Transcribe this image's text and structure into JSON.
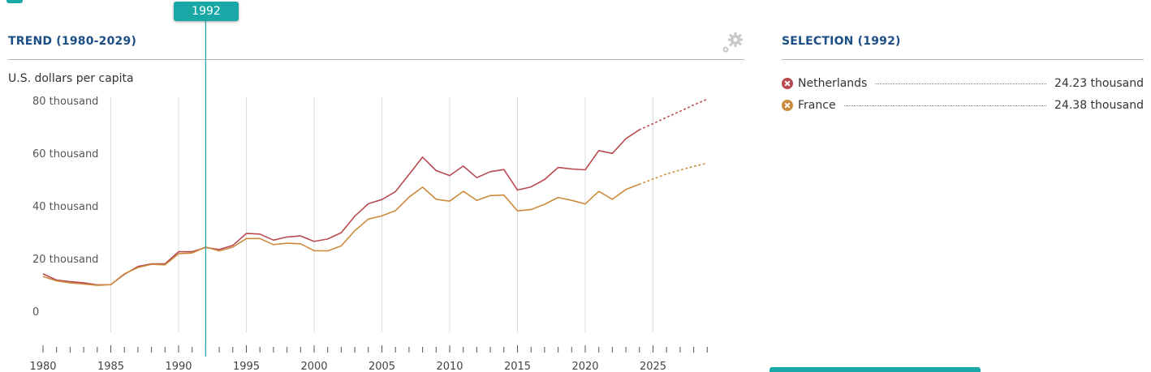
{
  "trend_panel": {
    "title": "TREND (1980-2029)",
    "unit_label": "U.S. dollars per capita",
    "settings_icon": "gear-icon",
    "selected_year_label": "1992"
  },
  "selection_panel": {
    "title": "SELECTION (1992)",
    "items": [
      {
        "name": "Netherlands",
        "value": "24.23 thousand",
        "color": "#b84a4f",
        "icon": "remove-x-icon"
      },
      {
        "name": "France",
        "value": "24.38 thousand",
        "color": "#cc8b3c",
        "icon": "remove-x-icon"
      }
    ]
  },
  "accent_color": "#1aa8a6",
  "chart_data": {
    "type": "line",
    "ylabel": "U.S. dollars per capita",
    "ylim": [
      0,
      80000
    ],
    "xlim": [
      1980,
      2029
    ],
    "yticks": [
      {
        "value": 0,
        "label": "0"
      },
      {
        "value": 20000,
        "label": "20 thousand"
      },
      {
        "value": 40000,
        "label": "40 thousand"
      },
      {
        "value": 60000,
        "label": "60 thousand"
      },
      {
        "value": 80000,
        "label": "80 thousand"
      }
    ],
    "xticks": [
      1980,
      1985,
      1990,
      1995,
      2000,
      2005,
      2010,
      2015,
      2020,
      2025
    ],
    "grid": "vertical",
    "selected_year": 1992,
    "projection_start": 2024,
    "series": [
      {
        "name": "Netherlands",
        "color": "#b84a4f",
        "x": [
          1980,
          1981,
          1982,
          1983,
          1984,
          1985,
          1986,
          1987,
          1988,
          1989,
          1990,
          1991,
          1992,
          1993,
          1994,
          1995,
          1996,
          1997,
          1998,
          1999,
          2000,
          2001,
          2002,
          2003,
          2004,
          2005,
          2006,
          2007,
          2008,
          2009,
          2010,
          2011,
          2012,
          2013,
          2014,
          2015,
          2016,
          2017,
          2018,
          2019,
          2020,
          2021,
          2022,
          2023,
          2024,
          2025,
          2026,
          2027,
          2028,
          2029
        ],
        "y": [
          14200,
          11800,
          11200,
          10800,
          10000,
          10100,
          14000,
          17000,
          18000,
          18000,
          22600,
          22600,
          24230,
          23400,
          25000,
          29500,
          29300,
          27000,
          28200,
          28600,
          26500,
          27400,
          29800,
          36100,
          40800,
          42400,
          45400,
          51900,
          58500,
          53400,
          51500,
          55100,
          50700,
          53000,
          53800,
          46000,
          47200,
          50000,
          54600,
          54000,
          53700,
          61000,
          59900,
          65500,
          68900,
          71200,
          73600,
          75900,
          78300,
          80500
        ]
      },
      {
        "name": "France",
        "color": "#cc8b3c",
        "x": [
          1980,
          1981,
          1982,
          1983,
          1984,
          1985,
          1986,
          1987,
          1988,
          1989,
          1990,
          1991,
          1992,
          1993,
          1994,
          1995,
          1996,
          1997,
          1998,
          1999,
          2000,
          2001,
          2002,
          2003,
          2004,
          2005,
          2006,
          2007,
          2008,
          2009,
          2010,
          2011,
          2012,
          2013,
          2014,
          2015,
          2016,
          2017,
          2018,
          2019,
          2020,
          2021,
          2022,
          2023,
          2024,
          2025,
          2026,
          2027,
          2028,
          2029
        ],
        "y": [
          13200,
          11500,
          10800,
          10300,
          9800,
          10100,
          14200,
          16600,
          17800,
          17600,
          21800,
          22100,
          24380,
          22900,
          24300,
          27600,
          27600,
          25300,
          25800,
          25600,
          23000,
          22900,
          24800,
          30600,
          35000,
          36200,
          38200,
          43300,
          47100,
          42500,
          41800,
          45500,
          42100,
          43900,
          44100,
          38100,
          38600,
          40600,
          43200,
          42100,
          40700,
          45500,
          42500,
          46200,
          48200,
          50200,
          52100,
          53600,
          55000,
          56200
        ]
      }
    ]
  }
}
